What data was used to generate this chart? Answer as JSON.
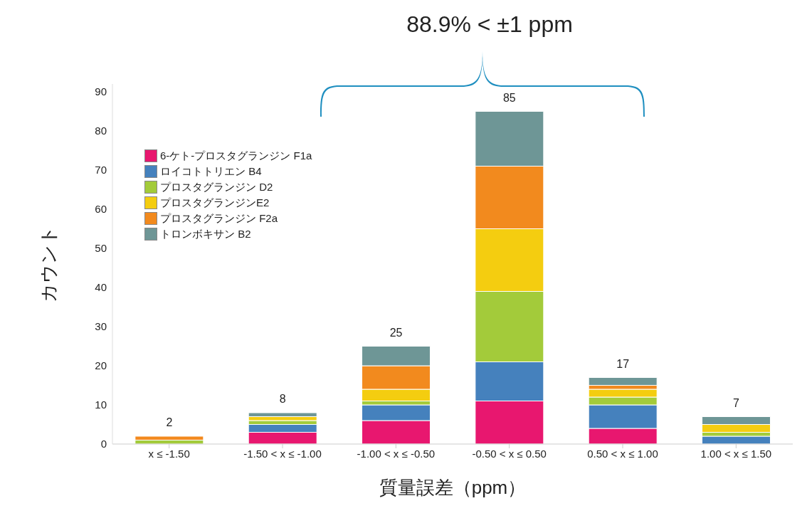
{
  "chart_data": {
    "type": "bar",
    "stacked": true,
    "xlabel": "質量誤差（ppm）",
    "ylabel": "カウント",
    "annotations": [
      "88.9% < ±1 ppm"
    ],
    "categories": [
      "x ≤ -1.50",
      "-1.50 < x ≤ -1.00",
      "-1.00 < x ≤ -0.50",
      "-0.50 < x ≤ 0.50",
      "0.50 < x ≤ 1.00",
      "1.00 < x ≤ 1.50"
    ],
    "series": [
      {
        "name": "6-ケト-プロスタグランジン F1a",
        "color": "#e8176f",
        "values": [
          0,
          3,
          6,
          11,
          4,
          0
        ]
      },
      {
        "name": "ロイコトトリエン B4",
        "color": "#4581bd",
        "values": [
          0,
          2,
          4,
          10,
          6,
          2
        ]
      },
      {
        "name": "プロスタグランジン D2",
        "color": "#a3cb3a",
        "values": [
          1,
          1,
          1,
          18,
          2,
          1
        ]
      },
      {
        "name": "プロスタグランジンE2",
        "color": "#f4cd10",
        "values": [
          0,
          1,
          3,
          16,
          2,
          2
        ]
      },
      {
        "name": "プロスタグランジン F2a",
        "color": "#f28a1e",
        "values": [
          1,
          0,
          6,
          16,
          1,
          0
        ]
      },
      {
        "name": "トロンボキサン B2",
        "color": "#6e9696",
        "values": [
          0,
          1,
          5,
          14,
          2,
          2
        ]
      }
    ],
    "totals": [
      "2",
      "8",
      "25",
      "85",
      "17",
      "7"
    ],
    "ylim": [
      0,
      92
    ],
    "yticks": [
      0,
      10,
      20,
      30,
      40,
      50,
      60,
      70,
      80,
      90
    ],
    "grid": false,
    "legend": "top left"
  }
}
